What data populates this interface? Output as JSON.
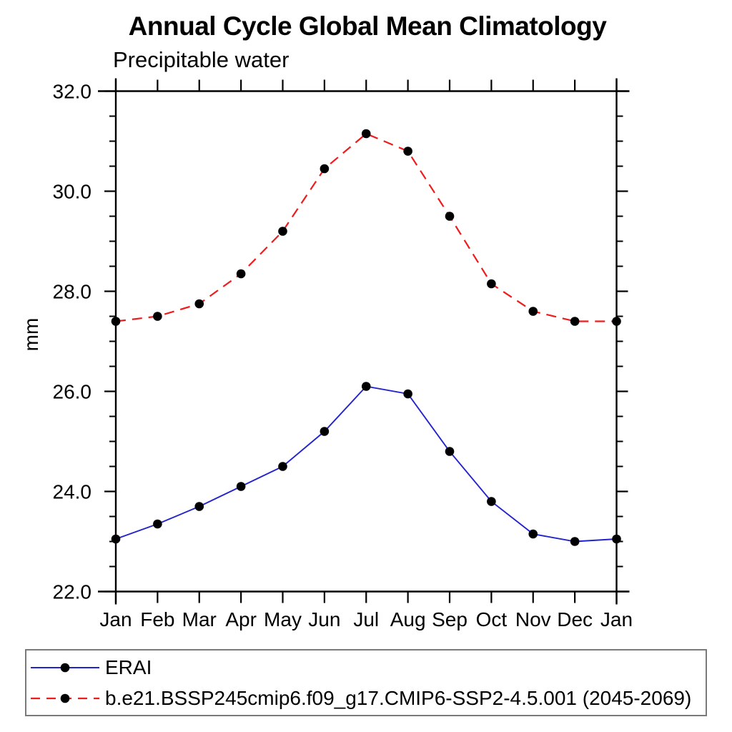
{
  "page": {
    "background_color": "#ffffff",
    "text_color": "#000000"
  },
  "chart_data": {
    "type": "line",
    "title": "Annual Cycle Global Mean Climatology",
    "subtitle": "Precipitable water",
    "ylabel": "mm",
    "xlabel": "",
    "x_categories": [
      "Jan",
      "Feb",
      "Mar",
      "Apr",
      "May",
      "Jun",
      "Jul",
      "Aug",
      "Sep",
      "Oct",
      "Nov",
      "Dec",
      "Jan"
    ],
    "ylim": [
      22.0,
      32.0
    ],
    "ytick_major_step": 2.0,
    "ytick_minor_step": 0.5,
    "ytick_labels": [
      "22.0",
      "24.0",
      "26.0",
      "28.0",
      "30.0",
      "32.0"
    ],
    "grid": false,
    "frame": "box-with-outward-ticks",
    "legend_position": "bottom-left-box",
    "marker": {
      "shape": "filled-circle",
      "color": "#000000",
      "radius_px": 6.3
    },
    "series": [
      {
        "name": "ERAI",
        "color": "#2323cd",
        "line_style": "solid",
        "values": [
          23.05,
          23.35,
          23.7,
          24.1,
          24.5,
          25.2,
          26.1,
          25.95,
          24.8,
          23.8,
          23.15,
          23.0,
          23.05
        ]
      },
      {
        "name": "b.e21.BSSP245cmip6.f09_g17.CMIP6-SSP2-4.5.001 (2045-2069)",
        "color": "#ee1c1c",
        "line_style": "dashed",
        "values": [
          27.4,
          27.5,
          27.75,
          28.35,
          29.2,
          30.45,
          31.15,
          30.8,
          29.5,
          28.15,
          27.6,
          27.4,
          27.4
        ]
      }
    ]
  }
}
